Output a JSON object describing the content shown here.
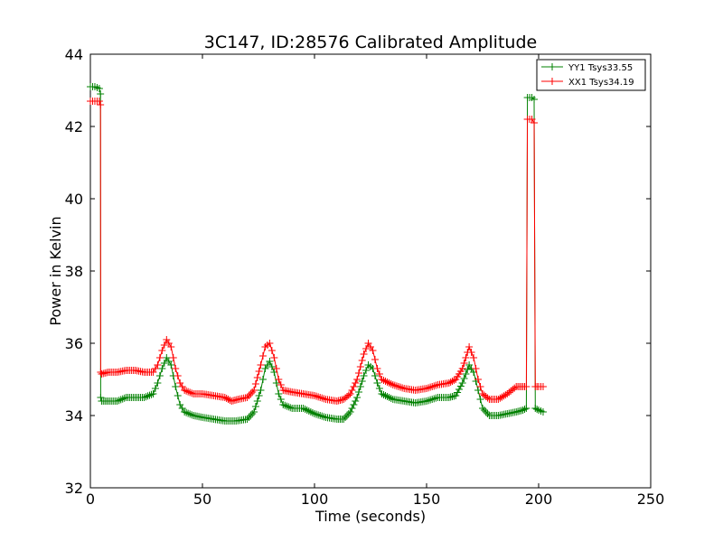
{
  "chart_data": {
    "type": "line",
    "title": "3C147, ID:28576 Calibrated Amplitude",
    "xlabel": "Time (seconds)",
    "ylabel": "Power in Kelvin",
    "xlim": [
      0,
      250
    ],
    "ylim": [
      32,
      44
    ],
    "xticks": [
      0,
      50,
      100,
      150,
      200,
      250
    ],
    "yticks": [
      32,
      34,
      36,
      38,
      40,
      42,
      44
    ],
    "grid": false,
    "legend_position": "top-right",
    "marker": "+",
    "series": [
      {
        "name": "YY1 Tsys33.55",
        "color": "#008000",
        "points": [
          [
            0,
            43.1
          ],
          [
            2,
            43.1
          ],
          [
            4,
            43.05
          ],
          [
            4.5,
            42.9
          ],
          [
            4.6,
            34.5
          ],
          [
            5,
            34.4
          ],
          [
            8,
            34.4
          ],
          [
            12,
            34.4
          ],
          [
            16,
            34.5
          ],
          [
            20,
            34.5
          ],
          [
            24,
            34.5
          ],
          [
            28,
            34.6
          ],
          [
            30,
            34.9
          ],
          [
            32,
            35.3
          ],
          [
            34,
            35.6
          ],
          [
            36,
            35.4
          ],
          [
            38,
            34.8
          ],
          [
            40,
            34.3
          ],
          [
            42,
            34.1
          ],
          [
            46,
            34.0
          ],
          [
            50,
            33.95
          ],
          [
            55,
            33.9
          ],
          [
            60,
            33.85
          ],
          [
            65,
            33.85
          ],
          [
            70,
            33.9
          ],
          [
            73,
            34.1
          ],
          [
            76,
            34.7
          ],
          [
            78,
            35.3
          ],
          [
            80,
            35.5
          ],
          [
            82,
            35.2
          ],
          [
            84,
            34.6
          ],
          [
            86,
            34.3
          ],
          [
            90,
            34.2
          ],
          [
            95,
            34.2
          ],
          [
            100,
            34.05
          ],
          [
            105,
            33.95
          ],
          [
            110,
            33.9
          ],
          [
            113,
            33.9
          ],
          [
            116,
            34.1
          ],
          [
            119,
            34.5
          ],
          [
            122,
            35.1
          ],
          [
            124,
            35.4
          ],
          [
            126,
            35.3
          ],
          [
            128,
            34.9
          ],
          [
            130,
            34.6
          ],
          [
            135,
            34.45
          ],
          [
            140,
            34.4
          ],
          [
            145,
            34.35
          ],
          [
            150,
            34.4
          ],
          [
            155,
            34.5
          ],
          [
            160,
            34.5
          ],
          [
            163,
            34.55
          ],
          [
            166,
            34.9
          ],
          [
            169,
            35.4
          ],
          [
            171,
            35.2
          ],
          [
            173,
            34.7
          ],
          [
            175,
            34.2
          ],
          [
            178,
            34.0
          ],
          [
            182,
            34.0
          ],
          [
            186,
            34.05
          ],
          [
            190,
            34.1
          ],
          [
            193,
            34.15
          ],
          [
            194.5,
            34.2
          ],
          [
            195,
            42.8
          ],
          [
            197,
            42.8
          ],
          [
            198,
            42.75
          ],
          [
            198.5,
            34.2
          ],
          [
            200,
            34.15
          ],
          [
            202,
            34.1
          ]
        ]
      },
      {
        "name": "XX1 Tsys34.19",
        "color": "#ff0000",
        "points": [
          [
            0,
            42.7
          ],
          [
            2,
            42.7
          ],
          [
            4,
            42.7
          ],
          [
            4.5,
            42.6
          ],
          [
            4.6,
            35.2
          ],
          [
            5,
            35.15
          ],
          [
            8,
            35.2
          ],
          [
            12,
            35.2
          ],
          [
            16,
            35.25
          ],
          [
            20,
            35.25
          ],
          [
            24,
            35.2
          ],
          [
            28,
            35.2
          ],
          [
            30,
            35.4
          ],
          [
            32,
            35.8
          ],
          [
            34,
            36.1
          ],
          [
            36,
            35.9
          ],
          [
            38,
            35.3
          ],
          [
            40,
            34.9
          ],
          [
            42,
            34.7
          ],
          [
            46,
            34.6
          ],
          [
            50,
            34.6
          ],
          [
            55,
            34.55
          ],
          [
            60,
            34.5
          ],
          [
            63,
            34.4
          ],
          [
            66,
            34.45
          ],
          [
            70,
            34.5
          ],
          [
            73,
            34.7
          ],
          [
            76,
            35.4
          ],
          [
            78,
            35.9
          ],
          [
            80,
            36.0
          ],
          [
            82,
            35.6
          ],
          [
            84,
            35.0
          ],
          [
            86,
            34.7
          ],
          [
            90,
            34.65
          ],
          [
            95,
            34.6
          ],
          [
            100,
            34.55
          ],
          [
            105,
            34.45
          ],
          [
            110,
            34.4
          ],
          [
            113,
            34.45
          ],
          [
            116,
            34.6
          ],
          [
            119,
            35.0
          ],
          [
            122,
            35.7
          ],
          [
            124,
            36.0
          ],
          [
            126,
            35.8
          ],
          [
            128,
            35.3
          ],
          [
            130,
            35.0
          ],
          [
            135,
            34.85
          ],
          [
            140,
            34.75
          ],
          [
            145,
            34.7
          ],
          [
            150,
            34.75
          ],
          [
            155,
            34.85
          ],
          [
            160,
            34.9
          ],
          [
            163,
            35.0
          ],
          [
            166,
            35.3
          ],
          [
            169,
            35.9
          ],
          [
            171,
            35.6
          ],
          [
            173,
            35.0
          ],
          [
            175,
            34.6
          ],
          [
            178,
            34.45
          ],
          [
            182,
            34.45
          ],
          [
            186,
            34.6
          ],
          [
            190,
            34.8
          ],
          [
            193,
            34.8
          ],
          [
            194.5,
            34.8
          ],
          [
            195,
            42.2
          ],
          [
            197,
            42.2
          ],
          [
            198,
            42.1
          ],
          [
            198.5,
            34.8
          ],
          [
            200,
            34.8
          ],
          [
            202,
            34.8
          ]
        ]
      }
    ]
  }
}
